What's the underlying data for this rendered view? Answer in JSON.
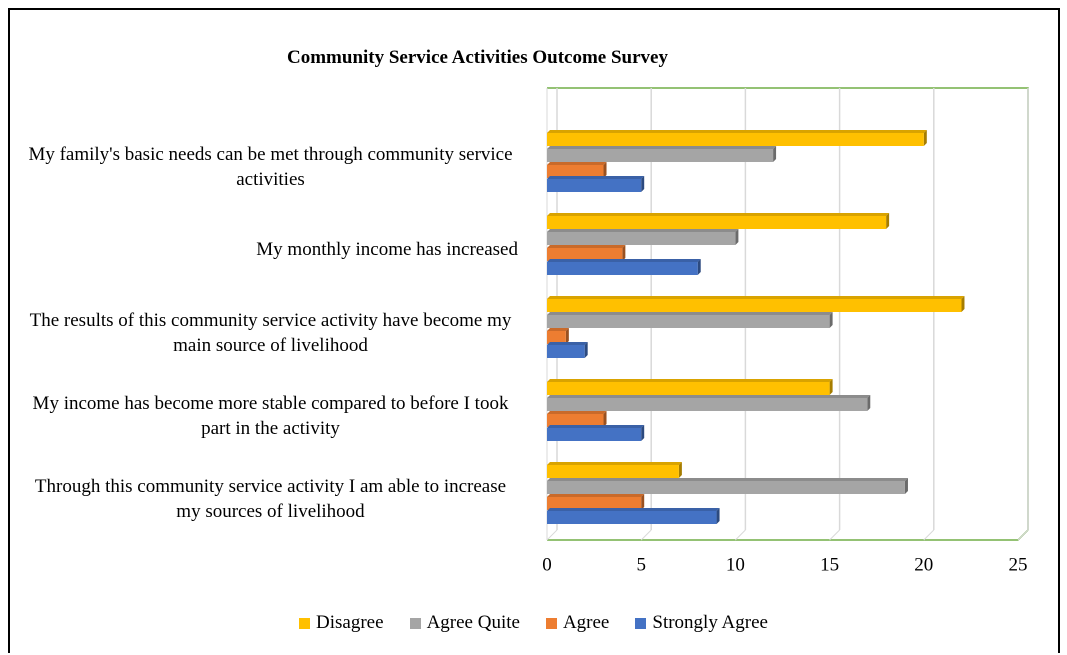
{
  "chart_data": {
    "type": "bar",
    "orientation": "horizontal",
    "title": "Community Service Activities Outcome Survey",
    "categories": [
      "My family's basic needs can be met through community service activities",
      "My monthly income has increased",
      "The results of this community service activity have become my main source of livelihood",
      "My income has become more stable compared to before I took part in the activity",
      "Through this community service activity I am able to increase my sources of livelihood"
    ],
    "series": [
      {
        "name": "Disagree",
        "color": "#ffc000",
        "values": [
          20,
          18,
          22,
          15,
          7
        ]
      },
      {
        "name": "Agree Quite",
        "color": "#a5a5a5",
        "values": [
          12,
          10,
          15,
          17,
          19
        ]
      },
      {
        "name": "Agree",
        "color": "#ed7d31",
        "values": [
          3,
          4,
          1,
          3,
          5
        ]
      },
      {
        "name": "Strongly Agree",
        "color": "#4472c4",
        "values": [
          5,
          8,
          2,
          5,
          9
        ]
      }
    ],
    "xlim": [
      0,
      25
    ],
    "xticks": [
      0,
      5,
      10,
      15,
      20,
      25
    ],
    "grid": true,
    "legend": "bottom"
  }
}
